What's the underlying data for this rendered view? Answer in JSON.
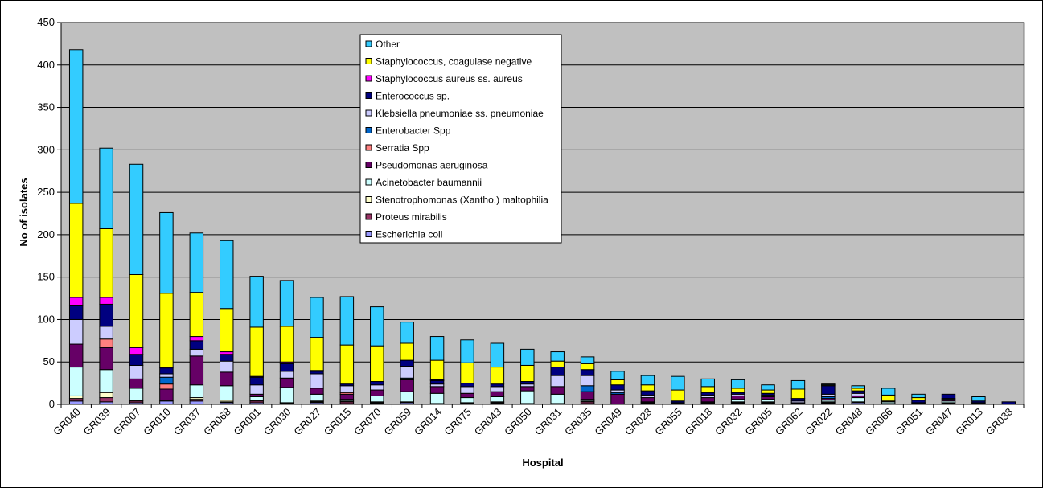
{
  "chart_data": {
    "type": "bar",
    "stacked": true,
    "title": "",
    "xlabel": "Hospital",
    "ylabel": "No of isolates",
    "ylim": [
      0,
      450
    ],
    "yticks": [
      0,
      50,
      100,
      150,
      200,
      250,
      300,
      350,
      400,
      450
    ],
    "grid": "horizontal",
    "legend_position": "top-center",
    "plot_background": "#c0c0c0",
    "categories": [
      "GR040",
      "GR039",
      "GR007",
      "GR010",
      "GR037",
      "GR068",
      "GR001",
      "GR030",
      "GR027",
      "GR015",
      "GR070",
      "GR059",
      "GR014",
      "GR075",
      "GR043",
      "GR050",
      "GR031",
      "GR035",
      "GR049",
      "GR028",
      "GR055",
      "GR018",
      "GR032",
      "GR005",
      "GR062",
      "GR022",
      "GR048",
      "GR066",
      "GR051",
      "GR047",
      "GR013",
      "GR038"
    ],
    "series": [
      {
        "name": "Escherichia coli",
        "color": "#9999ff",
        "values": [
          4,
          3,
          2,
          4,
          4,
          2,
          2,
          1,
          2,
          1,
          1,
          2,
          1,
          1,
          1,
          1,
          1,
          1,
          0,
          1,
          0,
          1,
          1,
          1,
          0,
          1,
          2,
          1,
          0,
          1,
          0,
          0
        ]
      },
      {
        "name": "Proteus mirabilis",
        "color": "#993366",
        "values": [
          3,
          5,
          2,
          1,
          2,
          1,
          2,
          0,
          1,
          2,
          1,
          1,
          0,
          1,
          1,
          0,
          0,
          2,
          0,
          1,
          0,
          0,
          1,
          1,
          0,
          1,
          0,
          0,
          0,
          0,
          0,
          0
        ]
      },
      {
        "name": "Stenotrophomonas (Xantho.) maltophilia",
        "color": "#ffffcc",
        "values": [
          3,
          6,
          1,
          0,
          2,
          2,
          1,
          1,
          1,
          1,
          1,
          0,
          0,
          0,
          1,
          0,
          0,
          1,
          0,
          1,
          0,
          1,
          1,
          1,
          0,
          1,
          1,
          0,
          0,
          1,
          0,
          0
        ]
      },
      {
        "name": "Acinetobacter baumannii",
        "color": "#ccffff",
        "values": [
          34,
          27,
          14,
          0,
          15,
          17,
          4,
          18,
          8,
          2,
          7,
          12,
          12,
          6,
          6,
          15,
          11,
          2,
          0,
          0,
          0,
          1,
          3,
          3,
          1,
          2,
          5,
          2,
          0,
          2,
          0,
          0
        ]
      },
      {
        "name": "Pseudomonas aeruginosa",
        "color": "#660066",
        "values": [
          27,
          26,
          11,
          13,
          34,
          16,
          3,
          11,
          7,
          6,
          7,
          14,
          8,
          5,
          6,
          5,
          9,
          9,
          12,
          5,
          1,
          5,
          4,
          3,
          1,
          2,
          2,
          0,
          1,
          2,
          1,
          0
        ]
      },
      {
        "name": "Serratia Spp",
        "color": "#ff8080",
        "values": [
          0,
          10,
          0,
          6,
          0,
          0,
          0,
          0,
          0,
          2,
          0,
          0,
          0,
          0,
          0,
          0,
          0,
          0,
          0,
          0,
          0,
          0,
          0,
          0,
          0,
          0,
          0,
          0,
          0,
          0,
          0,
          0
        ]
      },
      {
        "name": "Enterobacter Spp",
        "color": "#0066cc",
        "values": [
          0,
          0,
          0,
          8,
          0,
          0,
          0,
          0,
          0,
          0,
          0,
          2,
          0,
          0,
          0,
          0,
          0,
          7,
          2,
          0,
          0,
          0,
          0,
          0,
          0,
          2,
          0,
          0,
          0,
          0,
          0,
          0
        ]
      },
      {
        "name": "Klebsiella pneumoniae ss. pneumoniae",
        "color": "#ccccff",
        "values": [
          29,
          15,
          16,
          4,
          8,
          13,
          11,
          8,
          17,
          8,
          6,
          14,
          3,
          8,
          6,
          3,
          13,
          12,
          3,
          3,
          1,
          3,
          2,
          2,
          2,
          3,
          3,
          1,
          1,
          1,
          1,
          0
        ]
      },
      {
        "name": "Enterococcus sp.",
        "color": "#000080",
        "values": [
          17,
          26,
          13,
          7,
          10,
          8,
          9,
          9,
          3,
          2,
          4,
          7,
          4,
          4,
          3,
          3,
          10,
          7,
          6,
          5,
          2,
          3,
          2,
          2,
          3,
          10,
          3,
          0,
          3,
          5,
          2,
          3
        ]
      },
      {
        "name": "Staphylococcus aureus ss. aureus",
        "color": "#ff00ff",
        "values": [
          9,
          8,
          8,
          1,
          5,
          3,
          1,
          2,
          1,
          0,
          0,
          0,
          1,
          0,
          0,
          0,
          0,
          0,
          0,
          0,
          0,
          0,
          0,
          0,
          0,
          0,
          0,
          0,
          0,
          0,
          0,
          0
        ]
      },
      {
        "name": "Staphylococcus, coagulase negative",
        "color": "#ffff00",
        "values": [
          111,
          81,
          86,
          87,
          52,
          51,
          58,
          42,
          39,
          46,
          42,
          20,
          23,
          24,
          20,
          19,
          7,
          7,
          6,
          7,
          13,
          7,
          5,
          4,
          11,
          1,
          3,
          7,
          3,
          0,
          0,
          0
        ]
      },
      {
        "name": "Other",
        "color": "#33ccff",
        "values": [
          181,
          95,
          130,
          95,
          70,
          80,
          60,
          54,
          47,
          57,
          46,
          25,
          28,
          27,
          28,
          19,
          11,
          8,
          10,
          11,
          16,
          9,
          10,
          6,
          10,
          1,
          3,
          8,
          4,
          0,
          5,
          0
        ]
      }
    ]
  }
}
